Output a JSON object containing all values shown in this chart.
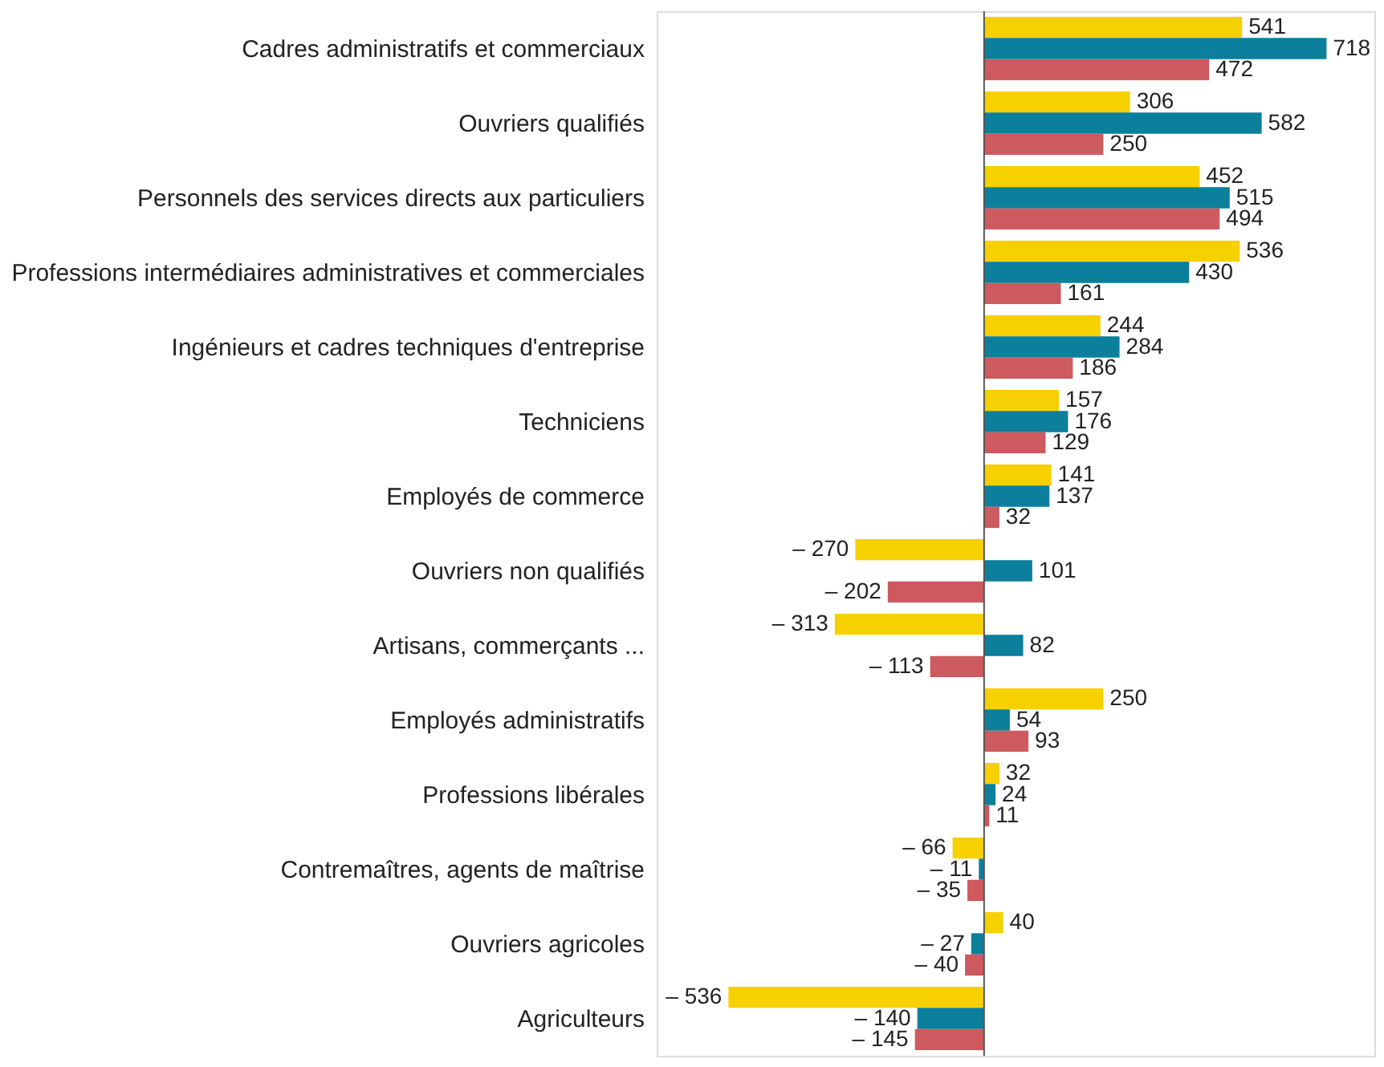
{
  "chart_data": {
    "type": "bar",
    "orientation": "horizontal",
    "grid": false,
    "legend": false,
    "tick_labels": "y",
    "categories": [
      "Cadres administratifs et commerciaux",
      "Ouvriers qualifiés",
      "Personnels des services directs aux particuliers",
      "Professions intermédiaires administratives et commerciales",
      "Ingénieurs et cadres techniques d'entreprise",
      "Techniciens",
      "Employés de commerce",
      "Ouvriers non qualifiés",
      "Artisans, commerçants ...",
      "Employés administratifs",
      "Professions libérales",
      "Contremaîtres, agents de maîtrise",
      "Ouvriers agricoles",
      "Agriculteurs"
    ],
    "series": [
      {
        "color": "#f7d000",
        "values": [
          541,
          306,
          452,
          536,
          244,
          157,
          141,
          -270,
          -313,
          250,
          32,
          -66,
          40,
          -536
        ],
        "value_labels": [
          "541",
          "306",
          "452",
          "536",
          "244",
          "157",
          "141",
          "– 270",
          "– 313",
          "250",
          "32",
          "– 66",
          "40",
          "– 536"
        ]
      },
      {
        "color": "#0b7f9b",
        "values": [
          718,
          582,
          515,
          430,
          284,
          176,
          137,
          101,
          82,
          54,
          24,
          -11,
          -27,
          -140
        ],
        "value_labels": [
          "718",
          "582",
          "515",
          "430",
          "284",
          "176",
          "137",
          "101",
          "82",
          "54",
          "24",
          "– 11",
          "– 27",
          "– 140"
        ]
      },
      {
        "color": "#cd5a5f",
        "values": [
          472,
          250,
          494,
          161,
          186,
          129,
          32,
          -202,
          -113,
          93,
          11,
          -35,
          -40,
          -145
        ],
        "value_labels": [
          "472",
          "250",
          "494",
          "161",
          "186",
          "129",
          "32",
          "– 202",
          "– 113",
          "93",
          "11",
          "– 35",
          "– 40",
          "– 145"
        ]
      }
    ]
  }
}
